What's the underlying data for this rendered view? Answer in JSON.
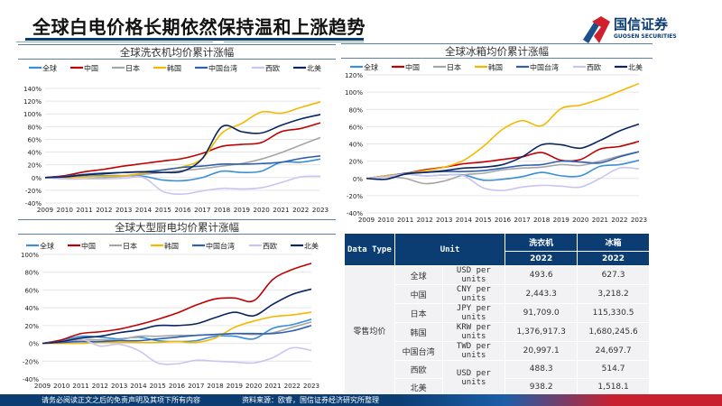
{
  "page_title": "全球白电价格长期依然保持温和上涨趋势",
  "logo": {
    "cn": "国信证券",
    "en": "GUOSEN SECURITIES"
  },
  "footer": {
    "disclaimer": "请务必阅读正文之后的免责声明及其项下所有内容",
    "source": "资料来源：欧睿，国信证券经济研究所整理"
  },
  "colors": {
    "全球": "#3a8fd6",
    "中国": "#c00000",
    "日本": "#a6a6a6",
    "韩国": "#f5b800",
    "中国台湾": "#2e5fb0",
    "西欧": "#c9c5f2",
    "北美": "#0b2560"
  },
  "chart_data": [
    {
      "type": "line",
      "title": "全球洗衣机均价累计涨幅",
      "legend": "top",
      "grid": true,
      "x": [
        2009,
        2010,
        2011,
        2012,
        2013,
        2014,
        2015,
        2016,
        2017,
        2018,
        2019,
        2020,
        2021,
        2022,
        2023
      ],
      "ylim": [
        -40,
        140
      ],
      "yticks": [
        -40,
        -20,
        0,
        20,
        40,
        60,
        80,
        100,
        120,
        140
      ],
      "yunit": "%",
      "series": [
        {
          "name": "全球",
          "values": [
            0,
            0,
            2,
            3,
            3,
            2,
            -4,
            -5,
            0,
            10,
            8,
            10,
            24,
            24,
            29
          ]
        },
        {
          "name": "中国",
          "values": [
            0,
            3,
            9,
            13,
            18,
            22,
            26,
            30,
            38,
            49,
            52,
            55,
            72,
            77,
            86
          ]
        },
        {
          "name": "日本",
          "values": [
            0,
            -2,
            -2,
            0,
            2,
            5,
            8,
            11,
            14,
            18,
            22,
            29,
            39,
            51,
            63
          ]
        },
        {
          "name": "韩国",
          "values": [
            0,
            0,
            1,
            2,
            3,
            7,
            12,
            17,
            30,
            70,
            85,
            103,
            101,
            110,
            119
          ]
        },
        {
          "name": "中国台湾",
          "values": [
            0,
            2,
            5,
            7,
            8,
            9,
            12,
            16,
            18,
            21,
            21,
            22,
            24,
            30,
            34
          ]
        },
        {
          "name": "西欧",
          "values": [
            0,
            -2,
            -2,
            -2,
            -1,
            0,
            -22,
            -26,
            -21,
            -17,
            -18,
            -16,
            -8,
            1,
            2
          ]
        },
        {
          "name": "北美",
          "values": [
            0,
            1,
            4,
            6,
            8,
            9,
            8,
            10,
            30,
            80,
            72,
            70,
            82,
            92,
            99
          ]
        }
      ]
    },
    {
      "type": "line",
      "title": "全球冰箱均价累计涨幅",
      "legend": "top",
      "grid": true,
      "x": [
        2009,
        2010,
        2011,
        2012,
        2013,
        2014,
        2015,
        2016,
        2017,
        2018,
        2019,
        2020,
        2021,
        2022,
        2023
      ],
      "ylim": [
        -40,
        120
      ],
      "yticks": [
        -40,
        -20,
        0,
        20,
        40,
        60,
        80,
        100,
        120
      ],
      "yunit": "%",
      "series": [
        {
          "name": "全球",
          "values": [
            0,
            3,
            5,
            3,
            4,
            4,
            -2,
            -1,
            2,
            7,
            3,
            3,
            14,
            16,
            21
          ]
        },
        {
          "name": "中国",
          "values": [
            0,
            3,
            6,
            10,
            13,
            17,
            19,
            22,
            25,
            30,
            21,
            22,
            34,
            37,
            43
          ]
        },
        {
          "name": "日本",
          "values": [
            0,
            2,
            0,
            -6,
            -3,
            4,
            6,
            10,
            12,
            13,
            16,
            15,
            20,
            26,
            31
          ]
        },
        {
          "name": "韩国",
          "values": [
            0,
            3,
            6,
            9,
            13,
            21,
            37,
            57,
            67,
            61,
            81,
            85,
            92,
            101,
            110
          ]
        },
        {
          "name": "中国台湾",
          "values": [
            0,
            2,
            6,
            7,
            8,
            8,
            9,
            12,
            15,
            16,
            20,
            19,
            18,
            25,
            31
          ]
        },
        {
          "name": "西欧",
          "values": [
            0,
            2,
            5,
            3,
            4,
            3,
            -11,
            -14,
            -10,
            -8,
            -9,
            -10,
            0,
            12,
            11
          ]
        },
        {
          "name": "北美",
          "values": [
            0,
            -1,
            5,
            7,
            9,
            12,
            13,
            16,
            25,
            39,
            39,
            35,
            44,
            55,
            63
          ]
        }
      ]
    },
    {
      "type": "line",
      "title": "全球大型厨电均价累计涨幅",
      "legend": "top",
      "grid": true,
      "x": [
        2009,
        2010,
        2011,
        2012,
        2013,
        2014,
        2015,
        2016,
        2017,
        2018,
        2019,
        2020,
        2021,
        2022,
        2023
      ],
      "ylim": [
        -40,
        100
      ],
      "yticks": [
        -40,
        -20,
        0,
        20,
        40,
        60,
        80,
        100
      ],
      "yunit": "%",
      "series": [
        {
          "name": "全球",
          "values": [
            0,
            3,
            8,
            7,
            5,
            7,
            3,
            2,
            3,
            8,
            8,
            5,
            17,
            21,
            27
          ]
        },
        {
          "name": "中国",
          "values": [
            0,
            4,
            11,
            13,
            16,
            21,
            27,
            34,
            43,
            50,
            51,
            48,
            72,
            83,
            90
          ]
        },
        {
          "name": "日本",
          "values": [
            0,
            1,
            4,
            4,
            4,
            8,
            8,
            9,
            9,
            10,
            11,
            10,
            12,
            18,
            24
          ]
        },
        {
          "name": "韩国",
          "values": [
            0,
            0,
            0,
            1,
            1,
            1,
            1,
            2,
            1,
            6,
            18,
            25,
            30,
            32,
            35
          ]
        },
        {
          "name": "中国台湾",
          "values": [
            0,
            1,
            2,
            2,
            3,
            3,
            5,
            7,
            9,
            10,
            11,
            11,
            11,
            14,
            20
          ]
        },
        {
          "name": "西欧",
          "values": [
            0,
            2,
            5,
            -3,
            -1,
            -8,
            -22,
            -23,
            -19,
            -20,
            -21,
            -22,
            -16,
            -5,
            -8
          ]
        },
        {
          "name": "北美",
          "values": [
            0,
            2,
            6,
            8,
            12,
            15,
            20,
            20,
            22,
            29,
            35,
            31,
            44,
            55,
            61
          ]
        }
      ]
    }
  ],
  "table": {
    "header": {
      "data_type": "Data Type",
      "unit": "Unit",
      "col1": "洗衣机",
      "col2": "冰箱",
      "year1": "2022",
      "year2": "2022"
    },
    "group": "零售均价",
    "rows": [
      {
        "region": "全球",
        "unit": "USD per units",
        "wm": "493.6",
        "fr": "627.3"
      },
      {
        "region": "中国",
        "unit": "CNY per units",
        "wm": "2,443.3",
        "fr": "3,218.2"
      },
      {
        "region": "日本",
        "unit": "JPY per units",
        "wm": "91,709.0",
        "fr": "115,330.5"
      },
      {
        "region": "韩国",
        "unit": "KRW per units",
        "wm": "1,376,917.3",
        "fr": "1,680,245.6"
      },
      {
        "region": "中国台湾",
        "unit": "TWD per units",
        "wm": "20,997.1",
        "fr": "24,697.7"
      },
      {
        "region": "西欧",
        "unit": "USD per units",
        "wm": "488.3",
        "fr": "514.7"
      },
      {
        "region": "北美",
        "unit": "",
        "wm": "938.2",
        "fr": "1,518.1"
      }
    ]
  }
}
